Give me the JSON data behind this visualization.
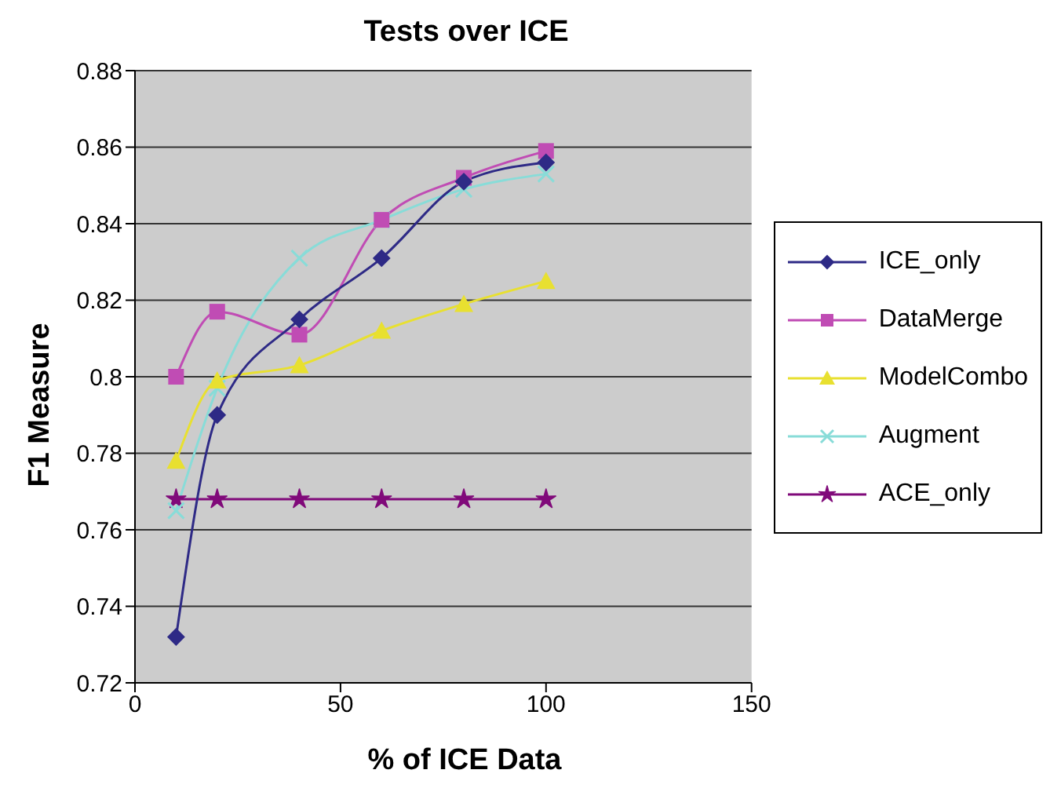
{
  "chart_data": {
    "type": "line",
    "title": "Tests over ICE",
    "xlabel": "% of ICE Data",
    "ylabel": "F1 Measure",
    "x": [
      10,
      20,
      40,
      60,
      80,
      100
    ],
    "series": [
      {
        "name": "ICE_only",
        "color": "#2e2a86",
        "marker": "diamond",
        "values": [
          0.732,
          0.79,
          0.815,
          0.831,
          0.851,
          0.856
        ]
      },
      {
        "name": "DataMerge",
        "color": "#c04cb4",
        "marker": "square",
        "values": [
          0.8,
          0.817,
          0.811,
          0.841,
          0.852,
          0.859
        ]
      },
      {
        "name": "ModelCombo",
        "color": "#e8e030",
        "marker": "triangle",
        "values": [
          0.778,
          0.799,
          0.803,
          0.812,
          0.819,
          0.825
        ]
      },
      {
        "name": "Augment",
        "color": "#88dcd8",
        "marker": "cross",
        "values": [
          0.765,
          0.797,
          0.831,
          0.841,
          0.849,
          0.853
        ]
      },
      {
        "name": "ACE_only",
        "color": "#800a7a",
        "marker": "star",
        "values": [
          0.768,
          0.768,
          0.768,
          0.768,
          0.768,
          0.768
        ]
      }
    ],
    "xlim": [
      0,
      150
    ],
    "xticks": [
      0,
      50,
      100,
      150
    ],
    "ylim": [
      0.72,
      0.88
    ],
    "yticks": [
      0.72,
      0.74,
      0.76,
      0.78,
      0.8,
      0.82,
      0.84,
      0.86,
      0.88
    ],
    "grid": "y",
    "legend": "right"
  }
}
